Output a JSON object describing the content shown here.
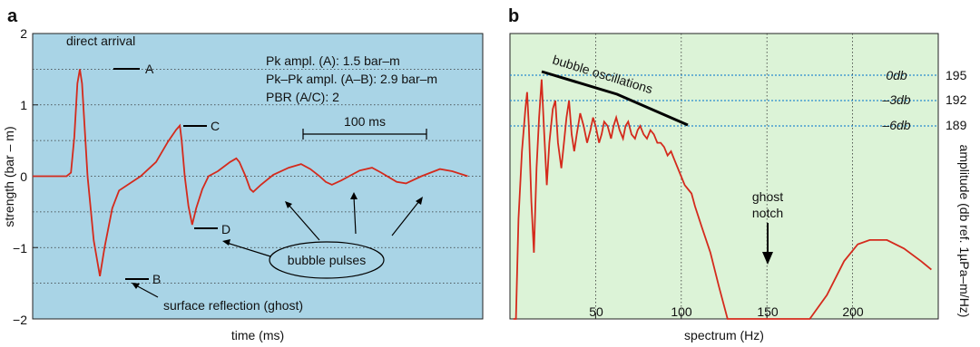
{
  "chart_data": [
    {
      "panel": "a",
      "type": "line",
      "xlabel": "time (ms)",
      "ylabel": "strength (bar – m)",
      "ylim": [
        -2,
        2
      ],
      "y_ticks": [
        "2",
        "1",
        "0",
        "−1",
        "−2"
      ],
      "background": "#a9d4e6",
      "line_color": "#d42a1c",
      "grid": "dotted horizontal",
      "series": [
        {
          "values": [
            [
              0,
              0
            ],
            [
              11,
              0
            ],
            [
              12.4,
              0.05
            ],
            [
              13.5,
              0.55
            ],
            [
              14.5,
              1.3
            ],
            [
              15.3,
              1.5
            ],
            [
              16,
              1.3
            ],
            [
              17.8,
              0
            ],
            [
              19.8,
              -0.9
            ],
            [
              21.8,
              -1.4
            ],
            [
              23.3,
              -1.0
            ],
            [
              25.8,
              -0.45
            ],
            [
              28,
              -0.2
            ],
            [
              35,
              0
            ],
            [
              40,
              0.2
            ],
            [
              43.8,
              0.48
            ],
            [
              46.5,
              0.65
            ],
            [
              47.7,
              0.71
            ],
            [
              48.3,
              0.5
            ],
            [
              49.3,
              0
            ],
            [
              50.5,
              -0.42
            ],
            [
              51.7,
              -0.68
            ],
            [
              53,
              -0.45
            ],
            [
              55,
              -0.18
            ],
            [
              57,
              0
            ],
            [
              60,
              0.07
            ],
            [
              64,
              0.2
            ],
            [
              66,
              0.25
            ],
            [
              67,
              0.2
            ],
            [
              69,
              0
            ],
            [
              70.5,
              -0.18
            ],
            [
              71.5,
              -0.22
            ],
            [
              74,
              -0.12
            ],
            [
              78,
              0.02
            ],
            [
              83,
              0.12
            ],
            [
              87,
              0.17
            ],
            [
              90,
              0.1
            ],
            [
              93,
              0
            ],
            [
              95,
              -0.08
            ],
            [
              97,
              -0.12
            ],
            [
              100,
              -0.06
            ],
            [
              106,
              0.08
            ],
            [
              110,
              0.12
            ],
            [
              113,
              0.05
            ],
            [
              118,
              -0.08
            ],
            [
              121,
              -0.1
            ],
            [
              126,
              0
            ],
            [
              132,
              0.1
            ],
            [
              136,
              0.07
            ],
            [
              141,
              0
            ]
          ]
        }
      ],
      "markers": [
        {
          "label": "A",
          "x": 15.3,
          "y": 1.5
        },
        {
          "label": "B",
          "x": 21.8,
          "y": -1.4
        },
        {
          "label": "C",
          "x": 47.7,
          "y": 0.71
        },
        {
          "label": "D",
          "x": 51.7,
          "y": -0.7
        }
      ],
      "annotations": {
        "direct_arrival": "direct arrival",
        "ghost": "surface reflection (ghost)",
        "pk_ampl": "Pk ampl. (A): 1.5 bar–m",
        "pk_pk_ampl": "Pk–Pk ampl. (A–B): 2.9 bar–m",
        "pbr": "PBR (A/C): 2",
        "scale_bar": "100 ms",
        "bubble_pulses": "bubble pulses"
      }
    },
    {
      "panel": "b",
      "type": "line",
      "xlabel": "spectrum (Hz)",
      "ylabel": "amplitude (db ref. 1µPa–m/Hz)",
      "xlim": [
        0,
        250
      ],
      "x_ticks": [
        "50",
        "100",
        "150",
        "200"
      ],
      "background": "#dcf3d7",
      "line_color": "#d42a1c",
      "grid": "dotted vertical",
      "db_levels": [
        {
          "label": "0db",
          "value": 195
        },
        {
          "label": "–3db",
          "value": 192
        },
        {
          "label": "–6db",
          "value": 189
        }
      ],
      "series": [
        {
          "values": [
            [
              2,
              150
            ],
            [
              3.5,
              165
            ],
            [
              5,
              178
            ],
            [
              7,
              186
            ],
            [
              9,
              191
            ],
            [
              10,
              193
            ],
            [
              11,
              189
            ],
            [
              12.5,
              180
            ],
            [
              14,
              174
            ],
            [
              15.5,
              184
            ],
            [
              17,
              190
            ],
            [
              18.5,
              194.5
            ],
            [
              20,
              188
            ],
            [
              21.5,
              182
            ],
            [
              23,
              187
            ],
            [
              25,
              191
            ],
            [
              26.5,
              192
            ],
            [
              28,
              187
            ],
            [
              30,
              184
            ],
            [
              31.5,
              187
            ],
            [
              33,
              190
            ],
            [
              34.5,
              192
            ],
            [
              36,
              188
            ],
            [
              37.5,
              186
            ],
            [
              39,
              188
            ],
            [
              41,
              190.5
            ],
            [
              43,
              189
            ],
            [
              45,
              187
            ],
            [
              47,
              188.5
            ],
            [
              48.5,
              190
            ],
            [
              50,
              189
            ],
            [
              52,
              187
            ],
            [
              53.5,
              188
            ],
            [
              55,
              189.5
            ],
            [
              57,
              189
            ],
            [
              59,
              187.5
            ],
            [
              60.5,
              189
            ],
            [
              62,
              190
            ],
            [
              64,
              188.5
            ],
            [
              66,
              187.5
            ],
            [
              67.5,
              189
            ],
            [
              69,
              189.5
            ],
            [
              71,
              188
            ],
            [
              73,
              187.5
            ],
            [
              74.5,
              188.5
            ],
            [
              76,
              189
            ],
            [
              78,
              188
            ],
            [
              80,
              187.5
            ],
            [
              82,
              188.5
            ],
            [
              84,
              188
            ],
            [
              86,
              187
            ],
            [
              88,
              187
            ],
            [
              90,
              186.5
            ],
            [
              92,
              185.5
            ],
            [
              94,
              186
            ],
            [
              96,
              185
            ],
            [
              98,
              184
            ],
            [
              100,
              183
            ],
            [
              102,
              182
            ],
            [
              104,
              181.5
            ],
            [
              106,
              181
            ],
            [
              108,
              179.5
            ],
            [
              112,
              177
            ],
            [
              117,
              174
            ],
            [
              122,
              170
            ],
            [
              127,
              166
            ],
            [
              132,
              161.5
            ],
            [
              137,
              156
            ],
            [
              142,
              149
            ],
            [
              146,
              142
            ],
            [
              149,
              136
            ],
            [
              150,
              133
            ],
            [
              152,
              129
            ],
            [
              154,
              125
            ],
            [
              156,
              126
            ],
            [
              158,
              132
            ],
            [
              160,
              141
            ],
            [
              163,
              148
            ],
            [
              168,
              156
            ],
            [
              175,
              163.5
            ],
            [
              185,
              169
            ],
            [
              195,
              173
            ],
            [
              203,
              175
            ],
            [
              210,
              175.5
            ],
            [
              220,
              175.5
            ],
            [
              230,
              174.5
            ],
            [
              240,
              173
            ],
            [
              246,
              172
            ]
          ]
        }
      ],
      "annotations": {
        "bubble_oscillations": "bubble oscillations",
        "ghost_notch_line1": "ghost",
        "ghost_notch_line2": "notch"
      }
    }
  ],
  "panel_labels": [
    "a",
    "b"
  ]
}
